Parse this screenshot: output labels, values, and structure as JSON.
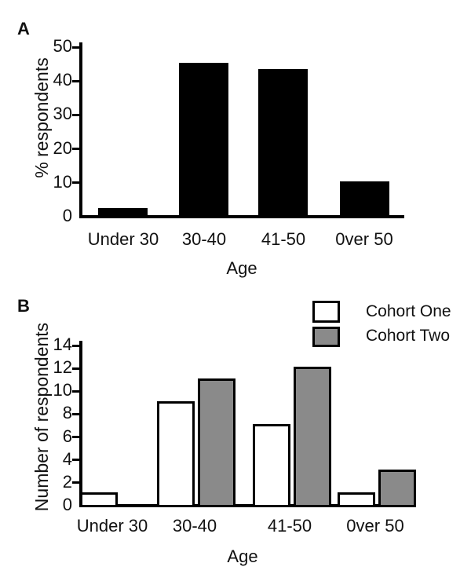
{
  "figure": {
    "panels": [
      {
        "label": "A"
      },
      {
        "label": "B"
      }
    ]
  },
  "colors": {
    "background": "#ffffff",
    "axis": "#000000",
    "panel_a_bar": "#000000",
    "cohort_one_fill": "#ffffff",
    "cohort_two_fill": "#8a8a8a",
    "bar_border": "#000000"
  },
  "chart_data": [
    {
      "type": "bar",
      "panel": "A",
      "title": "",
      "categories": [
        "Under 30",
        "30-40",
        "41-50",
        "0ver 50"
      ],
      "values": [
        2,
        45,
        43,
        10
      ],
      "xlabel": "Age",
      "ylabel": "% respondents",
      "ylim": [
        0,
        50
      ],
      "ytick_step": 10,
      "yticks": [
        0,
        10,
        20,
        30,
        40,
        50
      ],
      "grid": false,
      "bar_color": "#000000",
      "legend": null
    },
    {
      "type": "bar",
      "panel": "B",
      "title": "",
      "categories": [
        "Under 30",
        "30-40",
        "41-50",
        "0ver 50"
      ],
      "series": [
        {
          "name": "Cohort One",
          "values": [
            1,
            9,
            7,
            1
          ],
          "fill": "#ffffff"
        },
        {
          "name": "Cohort Two",
          "values": [
            0,
            11,
            12,
            3
          ],
          "fill": "#8a8a8a"
        }
      ],
      "xlabel": "Age",
      "ylabel": "Number of respondents",
      "ylim": [
        0,
        14
      ],
      "ytick_step": 2,
      "yticks": [
        0,
        2,
        4,
        6,
        8,
        10,
        12,
        14
      ],
      "grid": false,
      "legend_position": "top-right",
      "bar_border": "#000000"
    }
  ]
}
